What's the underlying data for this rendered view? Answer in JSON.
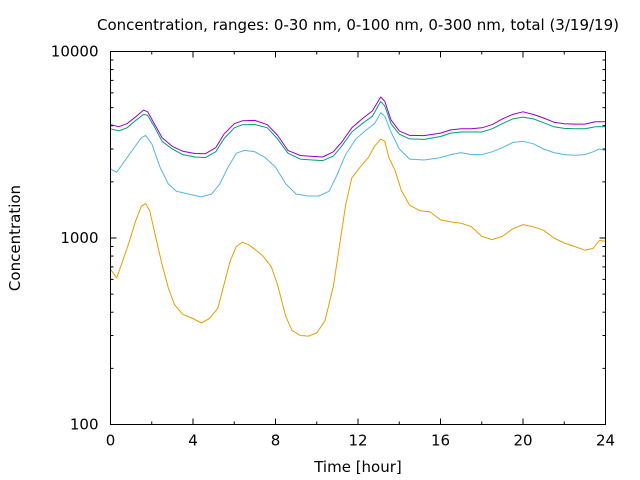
{
  "chart_data": {
    "type": "line",
    "title": "Concentration, ranges: 0-30 nm, 0-100 nm, 0-300 nm, total (3/19/19)",
    "xlabel": "Time [hour]",
    "ylabel": "Concentration",
    "xlim": [
      0,
      24
    ],
    "ylim": [
      100,
      10000
    ],
    "y_scale": "log",
    "grid": false,
    "legend": "none",
    "x_ticks": [
      0,
      4,
      8,
      12,
      16,
      20,
      24
    ],
    "x_tick_labels": [
      "0",
      "4",
      "8",
      "12",
      "16",
      "20",
      "24"
    ],
    "y_major_ticks": [
      100,
      1000,
      10000
    ],
    "y_tick_labels": [
      "100",
      "1000",
      "10000"
    ],
    "series": [
      {
        "color": "#e69f00",
        "points": [
          [
            0,
            680
          ],
          [
            0.3,
            610
          ],
          [
            0.6,
            760
          ],
          [
            0.9,
            950
          ],
          [
            1.2,
            1220
          ],
          [
            1.5,
            1480
          ],
          [
            1.7,
            1530
          ],
          [
            1.9,
            1400
          ],
          [
            2.2,
            1000
          ],
          [
            2.5,
            720
          ],
          [
            2.8,
            540
          ],
          [
            3.1,
            440
          ],
          [
            3.5,
            390
          ],
          [
            4.0,
            370
          ],
          [
            4.4,
            350
          ],
          [
            4.8,
            370
          ],
          [
            5.2,
            420
          ],
          [
            5.5,
            560
          ],
          [
            5.8,
            750
          ],
          [
            6.1,
            900
          ],
          [
            6.4,
            950
          ],
          [
            6.7,
            920
          ],
          [
            7.0,
            870
          ],
          [
            7.4,
            800
          ],
          [
            7.8,
            700
          ],
          [
            8.1,
            560
          ],
          [
            8.5,
            380
          ],
          [
            8.8,
            320
          ],
          [
            9.2,
            300
          ],
          [
            9.6,
            298
          ],
          [
            10.0,
            310
          ],
          [
            10.4,
            360
          ],
          [
            10.8,
            550
          ],
          [
            11.1,
            900
          ],
          [
            11.4,
            1500
          ],
          [
            11.7,
            2100
          ],
          [
            12.1,
            2400
          ],
          [
            12.5,
            2700
          ],
          [
            12.8,
            3100
          ],
          [
            13.1,
            3400
          ],
          [
            13.3,
            3300
          ],
          [
            13.5,
            2700
          ],
          [
            13.8,
            2300
          ],
          [
            14.1,
            1800
          ],
          [
            14.5,
            1500
          ],
          [
            15.0,
            1400
          ],
          [
            15.5,
            1380
          ],
          [
            16.0,
            1250
          ],
          [
            16.5,
            1220
          ],
          [
            17.0,
            1200
          ],
          [
            17.5,
            1150
          ],
          [
            18.0,
            1020
          ],
          [
            18.5,
            980
          ],
          [
            19.0,
            1020
          ],
          [
            19.5,
            1120
          ],
          [
            20.0,
            1180
          ],
          [
            20.5,
            1150
          ],
          [
            21.0,
            1100
          ],
          [
            21.5,
            1000
          ],
          [
            22.0,
            940
          ],
          [
            22.5,
            900
          ],
          [
            23.0,
            860
          ],
          [
            23.4,
            880
          ],
          [
            23.7,
            970
          ],
          [
            24.0,
            960
          ]
        ]
      },
      {
        "color": "#56b4e9",
        "points": [
          [
            0,
            2350
          ],
          [
            0.3,
            2250
          ],
          [
            0.7,
            2600
          ],
          [
            1.1,
            3000
          ],
          [
            1.5,
            3450
          ],
          [
            1.7,
            3550
          ],
          [
            2.0,
            3200
          ],
          [
            2.4,
            2400
          ],
          [
            2.8,
            1950
          ],
          [
            3.2,
            1780
          ],
          [
            3.8,
            1720
          ],
          [
            4.4,
            1660
          ],
          [
            4.9,
            1720
          ],
          [
            5.3,
            1950
          ],
          [
            5.7,
            2400
          ],
          [
            6.1,
            2850
          ],
          [
            6.5,
            2950
          ],
          [
            7.0,
            2900
          ],
          [
            7.5,
            2700
          ],
          [
            8.0,
            2400
          ],
          [
            8.5,
            1950
          ],
          [
            9.0,
            1720
          ],
          [
            9.6,
            1680
          ],
          [
            10.1,
            1680
          ],
          [
            10.6,
            1780
          ],
          [
            11.0,
            2200
          ],
          [
            11.4,
            2800
          ],
          [
            11.9,
            3400
          ],
          [
            12.4,
            3800
          ],
          [
            12.8,
            4100
          ],
          [
            13.1,
            4700
          ],
          [
            13.3,
            4500
          ],
          [
            13.6,
            3700
          ],
          [
            14.0,
            3000
          ],
          [
            14.5,
            2650
          ],
          [
            15.2,
            2620
          ],
          [
            16.0,
            2700
          ],
          [
            16.5,
            2800
          ],
          [
            17.0,
            2870
          ],
          [
            17.5,
            2800
          ],
          [
            18.0,
            2800
          ],
          [
            18.5,
            2900
          ],
          [
            19.0,
            3050
          ],
          [
            19.5,
            3250
          ],
          [
            20.0,
            3300
          ],
          [
            20.5,
            3200
          ],
          [
            21.0,
            3000
          ],
          [
            21.5,
            2870
          ],
          [
            22.0,
            2800
          ],
          [
            22.5,
            2780
          ],
          [
            23.0,
            2800
          ],
          [
            23.4,
            2900
          ],
          [
            23.7,
            3000
          ],
          [
            24.0,
            2950
          ]
        ]
      },
      {
        "color": "#009e73",
        "points": [
          [
            0,
            3850
          ],
          [
            0.4,
            3750
          ],
          [
            0.8,
            3900
          ],
          [
            1.2,
            4250
          ],
          [
            1.6,
            4600
          ],
          [
            1.8,
            4550
          ],
          [
            2.1,
            4000
          ],
          [
            2.5,
            3300
          ],
          [
            3.0,
            3000
          ],
          [
            3.5,
            2800
          ],
          [
            4.1,
            2720
          ],
          [
            4.6,
            2700
          ],
          [
            5.1,
            2900
          ],
          [
            5.5,
            3400
          ],
          [
            6.0,
            3900
          ],
          [
            6.4,
            4050
          ],
          [
            7.0,
            4060
          ],
          [
            7.6,
            3900
          ],
          [
            8.1,
            3400
          ],
          [
            8.6,
            2850
          ],
          [
            9.2,
            2650
          ],
          [
            9.8,
            2620
          ],
          [
            10.3,
            2600
          ],
          [
            10.8,
            2750
          ],
          [
            11.2,
            3100
          ],
          [
            11.7,
            3700
          ],
          [
            12.2,
            4100
          ],
          [
            12.7,
            4500
          ],
          [
            13.1,
            5400
          ],
          [
            13.3,
            5100
          ],
          [
            13.6,
            4100
          ],
          [
            14.0,
            3600
          ],
          [
            14.5,
            3400
          ],
          [
            15.2,
            3380
          ],
          [
            16.0,
            3500
          ],
          [
            16.5,
            3650
          ],
          [
            17.0,
            3700
          ],
          [
            17.5,
            3700
          ],
          [
            18.0,
            3700
          ],
          [
            18.5,
            3850
          ],
          [
            19.0,
            4100
          ],
          [
            19.5,
            4350
          ],
          [
            20.0,
            4450
          ],
          [
            20.5,
            4350
          ],
          [
            21.0,
            4150
          ],
          [
            21.5,
            3950
          ],
          [
            22.0,
            3870
          ],
          [
            22.5,
            3850
          ],
          [
            23.0,
            3850
          ],
          [
            23.5,
            3950
          ],
          [
            24.0,
            3950
          ]
        ]
      },
      {
        "color": "#9400d3",
        "points": [
          [
            0,
            4050
          ],
          [
            0.4,
            3950
          ],
          [
            0.8,
            4100
          ],
          [
            1.2,
            4450
          ],
          [
            1.6,
            4850
          ],
          [
            1.8,
            4750
          ],
          [
            2.1,
            4150
          ],
          [
            2.5,
            3450
          ],
          [
            3.0,
            3100
          ],
          [
            3.5,
            2920
          ],
          [
            4.1,
            2840
          ],
          [
            4.6,
            2830
          ],
          [
            5.1,
            3050
          ],
          [
            5.5,
            3600
          ],
          [
            6.0,
            4100
          ],
          [
            6.4,
            4250
          ],
          [
            7.0,
            4270
          ],
          [
            7.6,
            4050
          ],
          [
            8.1,
            3550
          ],
          [
            8.6,
            2950
          ],
          [
            9.2,
            2770
          ],
          [
            9.8,
            2740
          ],
          [
            10.3,
            2720
          ],
          [
            10.8,
            2900
          ],
          [
            11.2,
            3250
          ],
          [
            11.7,
            3900
          ],
          [
            12.2,
            4350
          ],
          [
            12.7,
            4800
          ],
          [
            13.1,
            5700
          ],
          [
            13.3,
            5400
          ],
          [
            13.6,
            4300
          ],
          [
            14.0,
            3750
          ],
          [
            14.5,
            3550
          ],
          [
            15.2,
            3540
          ],
          [
            16.0,
            3650
          ],
          [
            16.5,
            3800
          ],
          [
            17.0,
            3850
          ],
          [
            17.5,
            3850
          ],
          [
            18.0,
            3900
          ],
          [
            18.5,
            4050
          ],
          [
            19.0,
            4350
          ],
          [
            19.5,
            4600
          ],
          [
            20.0,
            4750
          ],
          [
            20.5,
            4600
          ],
          [
            21.0,
            4400
          ],
          [
            21.5,
            4180
          ],
          [
            22.0,
            4100
          ],
          [
            22.5,
            4080
          ],
          [
            23.0,
            4080
          ],
          [
            23.5,
            4200
          ],
          [
            24.0,
            4200
          ]
        ]
      }
    ]
  }
}
